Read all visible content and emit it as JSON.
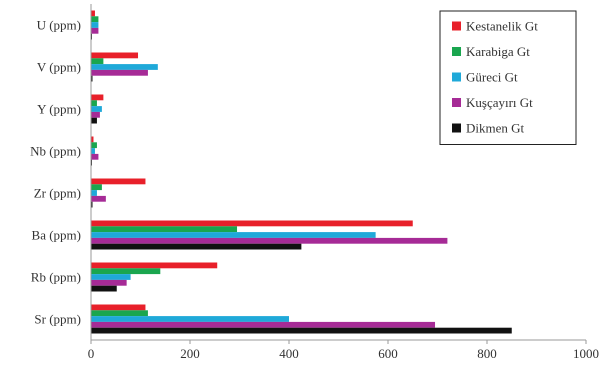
{
  "chart_data": {
    "type": "bar",
    "orientation": "horizontal",
    "title": "",
    "xlabel": "",
    "ylabel": "",
    "xlim": [
      0,
      1000
    ],
    "x_ticks": [
      0,
      200,
      400,
      600,
      800,
      1000
    ],
    "grid": false,
    "legend_position": "top-right",
    "categories": [
      "U (ppm)",
      "V (ppm)",
      "Y (ppm)",
      "Nb (ppm)",
      "Zr (ppm)",
      "Ba (ppm)",
      "Rb (ppm)",
      "Sr (ppm)"
    ],
    "series": [
      {
        "name": "Kestanelik Gt",
        "color": "#e8202a",
        "values": [
          8,
          95,
          25,
          5,
          110,
          650,
          255,
          110
        ]
      },
      {
        "name": "Karabiga Gt",
        "color": "#1aa64f",
        "values": [
          15,
          25,
          12,
          12,
          22,
          295,
          140,
          115
        ]
      },
      {
        "name": "Güreci Gt",
        "color": "#1fa9d9",
        "values": [
          15,
          135,
          22,
          8,
          12,
          575,
          80,
          400
        ]
      },
      {
        "name": "Kuşçayırı Gt",
        "color": "#a62b96",
        "values": [
          15,
          115,
          18,
          15,
          30,
          720,
          72,
          695
        ]
      },
      {
        "name": "Dikmen Gt",
        "color": "#111111",
        "values": [
          2,
          3,
          12,
          2,
          3,
          425,
          52,
          850
        ]
      }
    ]
  }
}
